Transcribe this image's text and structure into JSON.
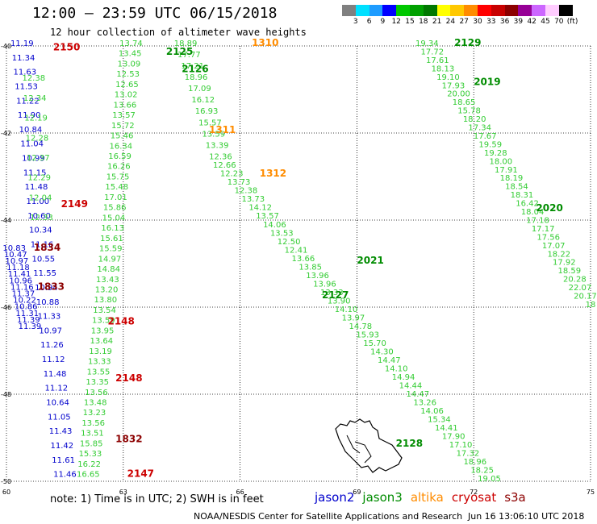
{
  "title": "12:00 – 23:59 UTC 06/15/2018",
  "subtitle": "12 hour collection of altimeter wave heights",
  "legend": {
    "colors": [
      "#808080",
      "#00e0ff",
      "#1e9cff",
      "#0000ff",
      "#00c800",
      "#00a000",
      "#007800",
      "#ffff00",
      "#ffc800",
      "#ff8c00",
      "#ff0000",
      "#c80000",
      "#8c0000",
      "#960096",
      "#cc66ff",
      "#ffccff",
      "#000000"
    ],
    "labels": [
      "3",
      "6",
      "9",
      "12",
      "15",
      "18",
      "21",
      "24",
      "27",
      "30",
      "33",
      "36",
      "39",
      "42",
      "45",
      "70"
    ],
    "unit": "(ft)"
  },
  "axes": {
    "lat_labels": [
      "-40",
      "-42",
      "-44",
      "-46",
      "-48",
      "-50"
    ],
    "lon_labels": [
      "60",
      "63",
      "66",
      "69",
      "72",
      "75"
    ]
  },
  "note": "note:  1) Time is in UTC; 2) SWH is in feet",
  "missions": [
    {
      "name": "jason2",
      "color": "#0000cc"
    },
    {
      "name": "jason3",
      "color": "#008c00"
    },
    {
      "name": "altika",
      "color": "#ff8c00"
    },
    {
      "name": "cryosat",
      "color": "#cc0000"
    },
    {
      "name": "s3a",
      "color": "#8c0000"
    }
  ],
  "credits": "NOAA/NESDIS Center for Satellite Applications and Research",
  "generated": "Jun 16 13:06:10 UTC 2018",
  "map_data": {
    "tracks": [
      {
        "name": "jason2 left",
        "color": "#0000cc",
        "lat0": -40.0,
        "lon0": 60.4,
        "lat1": -49.9,
        "lon1": 61.5,
        "values": [
          "11.19",
          "11.34",
          "11.63",
          "11.53",
          "11.22",
          "11.90",
          "10.84",
          "11.04",
          "10.99",
          "11.15",
          "11.48",
          "11.00",
          "10.60",
          "10.34",
          "11.16",
          "10.55",
          "11.55",
          "10.94",
          "10.88",
          "11.33",
          "10.97",
          "11.26",
          "11.12",
          "11.48",
          "11.12",
          "10.64",
          "11.05",
          "11.43",
          "11.42",
          "11.61",
          "11.46"
        ]
      },
      {
        "name": "jason2 far left",
        "color": "#0000cc",
        "lat0": -44.7,
        "lon0": 60.2,
        "lat1": -46.5,
        "lon1": 60.6,
        "values": [
          "10.83",
          "10.47",
          "10.97",
          "11.18",
          "11.41",
          "10.96",
          "11.16",
          "11.37",
          "10.22",
          "10.86",
          "11.31",
          "11.39",
          "11.39"
        ]
      },
      {
        "name": "jason3 left",
        "color": "#33cc33",
        "lat0": -40.8,
        "lon0": 60.7,
        "lat1": -44.0,
        "lon1": 60.9,
        "values": [
          "12.38",
          "12.34",
          "12.19",
          "12.28",
          "12.37",
          "12.29",
          "12.04",
          "12.33"
        ]
      },
      {
        "name": "jason3 2125",
        "color": "#33cc33",
        "lat0": -40.0,
        "lon0": 63.2,
        "lat1": -49.9,
        "lon1": 62.1,
        "values": [
          "13.74",
          "13.45",
          "13.09",
          "12.53",
          "12.65",
          "13.02",
          "13.66",
          "13.57",
          "15.72",
          "15.46",
          "16.34",
          "16.59",
          "16.26",
          "15.75",
          "15.48",
          "17.01",
          "15.86",
          "15.04",
          "16.13",
          "15.61",
          "15.59",
          "14.97",
          "14.84",
          "13.43",
          "13.20",
          "13.80",
          "13.54",
          "13.59",
          "13.95",
          "13.64",
          "13.19",
          "13.33",
          "13.55",
          "13.35",
          "13.56",
          "13.48",
          "13.23",
          "13.56",
          "13.51",
          "15.85",
          "15.33",
          "16.22",
          "16.65"
        ]
      },
      {
        "name": "jason3 2126",
        "color": "#33cc33",
        "lat0": -40.0,
        "lon0": 64.6,
        "lat1": -42.6,
        "lon1": 65.5,
        "values": [
          "18.89",
          "17.77",
          "17.21",
          "18.96",
          "17.09",
          "16.12",
          "16.93",
          "15.57",
          "13.59",
          "13.39",
          "12.36"
        ]
      },
      {
        "name": "jason3 2128",
        "color": "#33cc33",
        "lat0": -42.8,
        "lon0": 65.6,
        "lat1": -50.0,
        "lon1": 72.4,
        "values": [
          "12.66",
          "12.23",
          "13.73",
          "12.38",
          "13.73",
          "14.12",
          "13.57",
          "14.06",
          "13.53",
          "12.50",
          "12.41",
          "13.66",
          "13.85",
          "13.96",
          "13.96",
          "13.33",
          "13.90",
          "14.10",
          "13.97",
          "14.78",
          "15.93",
          "15.70",
          "14.30",
          "14.47",
          "14.10",
          "14.94",
          "14.44",
          "14.47",
          "13.26",
          "14.06",
          "15.34",
          "14.41",
          "17.90",
          "17.10",
          "17.32",
          "18.96",
          "18.25",
          "19.05"
        ]
      },
      {
        "name": "jason3 2019",
        "color": "#33cc33",
        "lat0": -40.0,
        "lon0": 70.8,
        "lat1": -46.0,
        "lon1": 75.0,
        "values": [
          "19.34",
          "17.72",
          "17.61",
          "18.13",
          "19.10",
          "17.93",
          "20.00",
          "18.65",
          "15.78",
          "18.20",
          "17.34",
          "17.67",
          "19.59",
          "19.28",
          "18.00",
          "17.91",
          "18.19",
          "18.54",
          "18.31",
          "16.42",
          "18.04",
          "17.18",
          "17.17",
          "17.56",
          "17.07",
          "18.22",
          "17.92",
          "18.59",
          "20.28",
          "22.07",
          "20.17",
          "18"
        ]
      }
    ],
    "labels": [
      {
        "text": "2150",
        "color": "#cc0000"
      },
      {
        "text": "2149",
        "color": "#cc0000"
      },
      {
        "text": "1834",
        "color": "#8c0000"
      },
      {
        "text": "1833",
        "color": "#8c0000"
      },
      {
        "text": "2148",
        "color": "#cc0000"
      },
      {
        "text": "2148",
        "color": "#cc0000"
      },
      {
        "text": "1832",
        "color": "#8c0000"
      },
      {
        "text": "2147",
        "color": "#cc0000"
      },
      {
        "text": "2125",
        "color": "#008c00"
      },
      {
        "text": "2126",
        "color": "#008c00"
      },
      {
        "text": "1310",
        "color": "#ff8c00"
      },
      {
        "text": "1311",
        "color": "#ff8c00"
      },
      {
        "text": "1312",
        "color": "#ff8c00"
      },
      {
        "text": "2127",
        "color": "#008c00"
      },
      {
        "text": "2128",
        "color": "#008c00"
      },
      {
        "text": "2129",
        "color": "#008c00"
      },
      {
        "text": "2019",
        "color": "#008c00"
      },
      {
        "text": "2020",
        "color": "#008c00"
      },
      {
        "text": "2021",
        "color": "#008c00"
      }
    ]
  }
}
